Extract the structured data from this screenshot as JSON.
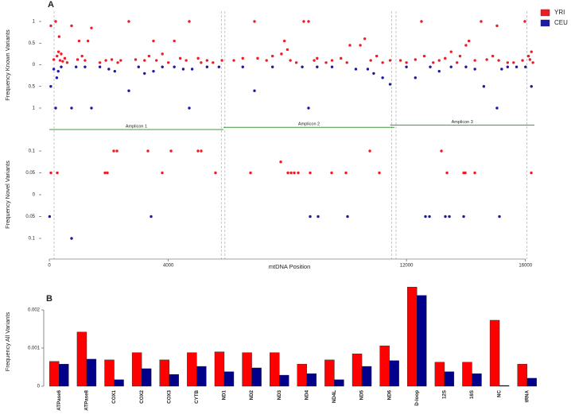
{
  "chart_data": [
    {
      "type": "scatter",
      "panel": "A",
      "ylabel": "Frequency Known Variants",
      "mirrored": true,
      "legend": "top-right",
      "xlim": [
        0,
        16300
      ],
      "ylim": [
        0,
        1
      ],
      "yticks": [
        0,
        0.5,
        1
      ],
      "boundaries": [
        160,
        5780,
        5900,
        11500,
        11650,
        16050
      ],
      "amplicons": [
        {
          "label": "Amplicon 1",
          "start": 0,
          "end": 5850
        },
        {
          "label": "Amplicon 2",
          "start": 5850,
          "end": 11600
        },
        {
          "label": "Amplicon 3",
          "start": 11450,
          "end": 16300
        }
      ],
      "series": [
        {
          "name": "YRI",
          "color": "#ee1c25",
          "x": [
            53,
            150,
            214,
            260,
            310,
            330,
            360,
            400,
            450,
            520,
            600,
            748,
            950,
            1000,
            1100,
            1200,
            1300,
            1416,
            1700,
            1900,
            2100,
            2300,
            2400,
            2672,
            2900,
            3200,
            3350,
            3500,
            3600,
            3800,
            4000,
            4200,
            4400,
            4600,
            4703,
            5000,
            5100,
            5300,
            5500,
            5800,
            6200,
            6500,
            6894,
            7000,
            7300,
            7500,
            7800,
            7900,
            8000,
            8100,
            8300,
            8550,
            8710,
            8900,
            9000,
            9300,
            9500,
            9800,
            10000,
            10100,
            10450,
            10600,
            10800,
            11000,
            11200,
            11450,
            11800,
            12000,
            12300,
            12505,
            12600,
            12900,
            13100,
            13300,
            13500,
            13700,
            13800,
            14000,
            14100,
            14300,
            14509,
            14700,
            14900,
            15043,
            15100,
            15400,
            15600,
            15900,
            15978,
            16100,
            16150,
            16200,
            16250
          ],
          "values": [
            0.9,
            0.12,
            1,
            0.2,
            0.3,
            0.65,
            0.1,
            0.25,
            0.08,
            0.15,
            0.05,
            0.9,
            0.12,
            0.55,
            0.2,
            0.1,
            0.55,
            0.85,
            0.05,
            0.1,
            0.12,
            0.05,
            0.1,
            1,
            0.12,
            0.1,
            0.2,
            0.55,
            0.1,
            0.25,
            0.05,
            0.55,
            0.15,
            0.1,
            1,
            0.15,
            0.05,
            0.1,
            0.05,
            0.1,
            0.1,
            0.15,
            1,
            0.15,
            0.1,
            0.2,
            0.25,
            0.55,
            0.35,
            0.1,
            0.05,
            1,
            1,
            0.1,
            0.15,
            0.05,
            0.1,
            0.15,
            0.05,
            0.45,
            0.45,
            0.6,
            0.1,
            0.2,
            0.05,
            0.1,
            0.1,
            0.05,
            0.12,
            1,
            0.2,
            0.05,
            0.1,
            0.15,
            0.3,
            0.05,
            0.2,
            0.45,
            0.55,
            0.1,
            1,
            0.12,
            0.2,
            0.9,
            0.1,
            0.05,
            0.05,
            0.1,
            1,
            0.2,
            0.12,
            0.3,
            0.05
          ]
        },
        {
          "name": "CEU",
          "color": "#1a1aa6",
          "x": [
            50,
            150,
            214,
            250,
            300,
            400,
            748,
            900,
            1200,
            1416,
            1700,
            2000,
            2200,
            2672,
            3000,
            3200,
            3500,
            3800,
            4200,
            4500,
            4703,
            4800,
            5300,
            5700,
            6500,
            6894,
            7500,
            8500,
            8710,
            9000,
            9500,
            10300,
            10700,
            10900,
            11200,
            11450,
            12000,
            12300,
            12800,
            13100,
            13500,
            14000,
            14300,
            14600,
            15043,
            15200,
            15400,
            15700,
            16000,
            16200
          ],
          "values": [
            0.5,
            0.1,
            1,
            0.3,
            0.15,
            0.05,
            1,
            0.05,
            0.05,
            1,
            0.05,
            0.1,
            0.15,
            0.6,
            0.05,
            0.2,
            0.15,
            0.05,
            0.05,
            0.1,
            1,
            0.1,
            0.05,
            0.05,
            0.05,
            0.6,
            0.05,
            0.05,
            1,
            0.05,
            0.05,
            0.1,
            0.1,
            0.2,
            0.3,
            0.45,
            0.05,
            0.3,
            0.05,
            0.15,
            0.05,
            0.05,
            0.1,
            0.5,
            1,
            0.1,
            0.05,
            0.05,
            0.05,
            0.5
          ]
        }
      ]
    },
    {
      "type": "scatter",
      "ylabel": "Frequency Novel Variants",
      "xlabel": "mtDNA Position",
      "mirrored": true,
      "xlim": [
        0,
        16300
      ],
      "ylim": [
        0,
        0.1
      ],
      "yticks": [
        0,
        0.05,
        0.1
      ],
      "xticks": [
        0,
        4000,
        12000,
        16000
      ],
      "series": [
        {
          "name": "YRI",
          "color": "#ee1c25",
          "x": [
            2165,
            2272,
            3314,
            4089,
            4997,
            5104,
            10770,
            13175,
            53,
            267,
            1871,
            1951,
            3795,
            5585,
            6761,
            7777,
            8017,
            8124,
            8231,
            8364,
            8765,
            9487,
            9968,
            11090,
            13362,
            13923,
            13977,
            14297,
            16195
          ],
          "values": [
            0.1,
            0.1,
            0.1,
            0.1,
            0.1,
            0.1,
            0.1,
            0.1,
            0.05,
            0.05,
            0.05,
            0.05,
            0.05,
            0.05,
            0.05,
            0.075,
            0.05,
            0.05,
            0.05,
            0.05,
            0.05,
            0.05,
            0.05,
            0.05,
            0.05,
            0.05,
            0.05,
            0.05,
            0.05
          ]
        },
        {
          "name": "CEU",
          "color": "#1a1aa6",
          "x": [
            10,
            3421,
            8765,
            9032,
            10021,
            12640,
            12774,
            13308,
            13442,
            13923,
            15125,
            748
          ],
          "values": [
            0.05,
            0.05,
            0.05,
            0.05,
            0.05,
            0.05,
            0.05,
            0.05,
            0.05,
            0.05,
            0.05,
            0.1
          ]
        }
      ]
    },
    {
      "type": "bar",
      "panel": "B",
      "ylabel": "Frequency All Variants",
      "ylim": [
        0,
        0.0027
      ],
      "yticks": [
        0,
        0.001,
        0.002
      ],
      "categories": [
        "ATPase6",
        "ATPase8",
        "COX1",
        "COX2",
        "COX3",
        "CYTB",
        "ND1",
        "ND2",
        "ND3",
        "ND4",
        "ND4L",
        "ND5",
        "ND6",
        "D-loop",
        "12S",
        "16S",
        "NC",
        "tRNA"
      ],
      "series": [
        {
          "name": "YRI",
          "color": "#ff0000",
          "values": [
            0.00065,
            0.00142,
            0.00069,
            0.00088,
            0.00069,
            0.00088,
            0.0009,
            0.00088,
            0.00088,
            0.00058,
            0.00069,
            0.00085,
            0.00106,
            0.0026,
            0.00063,
            0.00063,
            0.00173,
            0.00058
          ]
        },
        {
          "name": "CEU",
          "color": "#00008b",
          "values": [
            0.00058,
            0.00071,
            0.00017,
            0.00046,
            0.00031,
            0.00052,
            0.00038,
            0.00048,
            0.00029,
            0.00033,
            0.00017,
            0.00052,
            0.00067,
            0.00238,
            0.00038,
            0.00033,
            2e-05,
            0.00021
          ]
        }
      ]
    }
  ]
}
